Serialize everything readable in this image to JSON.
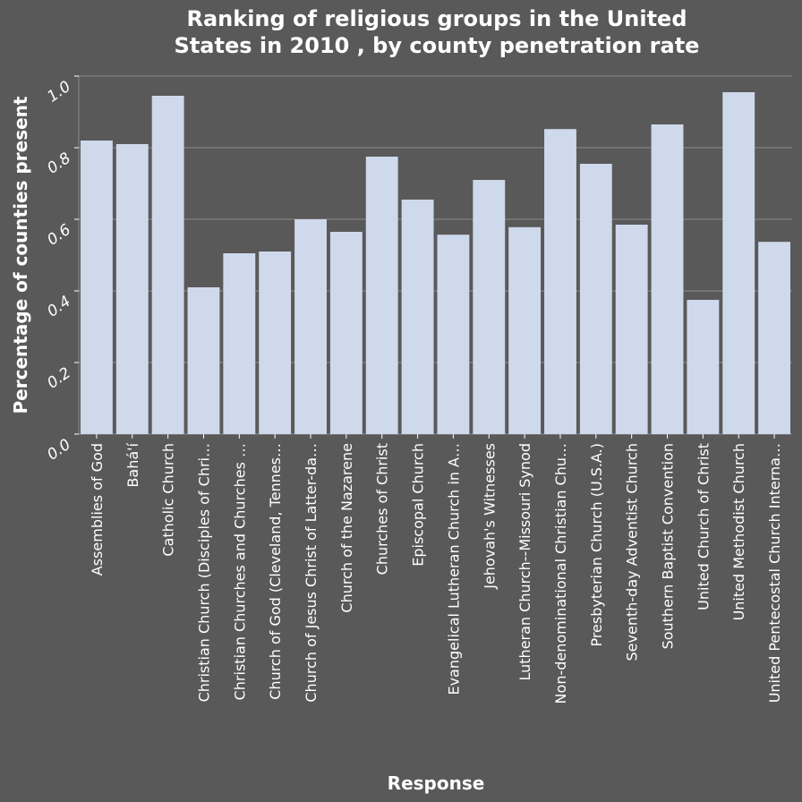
{
  "chart_data": {
    "type": "bar",
    "title_lines": [
      "Ranking of religious groups in the United",
      "States in 2010 , by county penetration rate"
    ],
    "xlabel": "Response",
    "ylabel": "Percentage of counties present",
    "ylim": [
      0,
      1.0
    ],
    "y_ticks": [
      "0.0",
      "0.2",
      "0.4",
      "0.6",
      "0.8",
      "1.0"
    ],
    "grid": true,
    "categories": [
      "Assemblies of God",
      "Bahá'í",
      "Catholic Church",
      "Christian Church (Disciples of Chri…",
      "Christian Churches and Churches …",
      "Church of God (Cleveland, Tennes…",
      "Church of Jesus Christ of Latter-da…",
      "Church of the Nazarene",
      "Churches of Christ",
      "Episcopal Church",
      "Evangelical Lutheran Church in A…",
      "Jehovah's Witnesses",
      "Lutheran Church--Missouri Synod",
      "Non-denominational Christian Chu…",
      "Presbyterian Church (U.S.A.)",
      "Seventh-day Adventist Church",
      "Southern Baptist Convention",
      "United Church of Christ",
      "United Methodist Church",
      "United Pentecostal Church Interna…"
    ],
    "values": [
      0.82,
      0.81,
      0.945,
      0.41,
      0.505,
      0.51,
      0.6,
      0.565,
      0.775,
      0.655,
      0.557,
      0.71,
      0.578,
      0.852,
      0.755,
      0.585,
      0.865,
      0.375,
      0.955,
      0.537
    ],
    "colors": {
      "background": "#595959",
      "bar": "#cfd9ec",
      "grid": "#8c8c8c",
      "text": "#ffffff"
    }
  }
}
